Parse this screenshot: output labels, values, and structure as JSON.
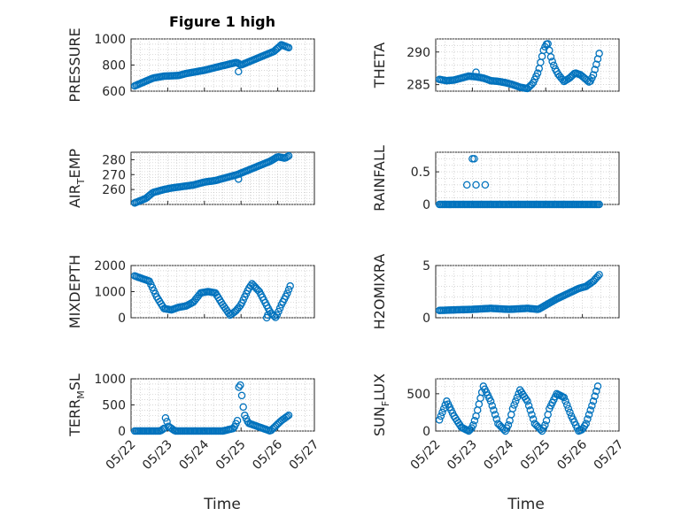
{
  "figure": {
    "title": "Figure 1 high",
    "xlabel": "Time",
    "x_tick_labels": [
      "05/22",
      "05/23",
      "05/24",
      "05/25",
      "05/26",
      "05/27"
    ],
    "marker_color": "#0072BD"
  },
  "chart_data": [
    {
      "type": "scatter",
      "title": "Figure 1 high",
      "ylabel": "PRESSURE",
      "ylim": [
        600,
        1000
      ],
      "yticks": [
        600,
        800,
        1000
      ],
      "xlim": [
        0,
        5
      ],
      "grid": true,
      "series": [
        {
          "x_day_start": 0.1,
          "x_day_end": 4.33,
          "x": [
            0.1,
            0.6,
            0.9,
            1.3,
            1.5,
            2.0,
            2.5,
            2.88,
            3.0,
            3.3,
            3.6,
            3.9,
            4.1,
            4.33
          ],
          "y": [
            640,
            700,
            715,
            720,
            735,
            760,
            795,
            820,
            800,
            835,
            870,
            905,
            955,
            930
          ],
          "outliers": [
            {
              "x": 2.93,
              "y": 750
            }
          ]
        }
      ]
    },
    {
      "type": "scatter",
      "ylabel": "THETA",
      "ylim": [
        284,
        292
      ],
      "yticks": [
        285,
        290
      ],
      "xlim": [
        0,
        5
      ],
      "grid": true,
      "series": [
        {
          "x": [
            0.1,
            0.3,
            0.5,
            0.7,
            0.9,
            1.1,
            1.3,
            1.5,
            1.7,
            1.9,
            2.1,
            2.3,
            2.5,
            2.65,
            2.8,
            2.95,
            3.05,
            3.15,
            3.25,
            3.35,
            3.5,
            3.65,
            3.8,
            3.95,
            4.1,
            4.2,
            4.3,
            4.4,
            4.48
          ],
          "y": [
            285.8,
            285.6,
            285.7,
            286.0,
            286.3,
            286.2,
            286.0,
            285.6,
            285.5,
            285.3,
            285.0,
            284.6,
            284.4,
            285.2,
            287.0,
            290.5,
            291.5,
            289.0,
            287.5,
            286.5,
            285.5,
            286.0,
            286.8,
            286.5,
            285.8,
            285.3,
            286.5,
            288.5,
            290.2
          ],
          "outliers": [
            {
              "x": 1.1,
              "y": 286.9
            }
          ]
        }
      ]
    },
    {
      "type": "scatter",
      "ylabel": "AIR_TEMP",
      "ylim": [
        250,
        285
      ],
      "yticks": [
        260,
        270,
        280
      ],
      "xlim": [
        0,
        5
      ],
      "grid": true,
      "series": [
        {
          "x": [
            0.1,
            0.4,
            0.6,
            0.9,
            1.1,
            1.4,
            1.7,
            2.0,
            2.3,
            2.6,
            2.9,
            3.2,
            3.5,
            3.8,
            4.0,
            4.2,
            4.33
          ],
          "y": [
            251,
            254,
            258,
            260,
            261,
            262,
            263,
            265,
            266,
            268,
            270,
            273,
            276,
            279,
            282,
            281,
            283
          ],
          "outliers": [
            {
              "x": 2.93,
              "y": 267
            }
          ]
        }
      ]
    },
    {
      "type": "scatter",
      "ylabel": "RAINFALL",
      "ylim": [
        0,
        0.8
      ],
      "yticks": [
        0,
        0.5
      ],
      "xlim": [
        0,
        5
      ],
      "grid": true,
      "series": [
        {
          "x_day_start": 0.1,
          "x_day_end": 4.48,
          "baseline": 0,
          "spikes": [
            {
              "x": 0.85,
              "y": 0.3
            },
            {
              "x": 1.0,
              "y": 0.7
            },
            {
              "x": 1.05,
              "y": 0.7
            },
            {
              "x": 1.1,
              "y": 0.3
            },
            {
              "x": 1.35,
              "y": 0.3
            }
          ]
        }
      ]
    },
    {
      "type": "scatter",
      "ylabel": "MIXDEPTH",
      "ylim": [
        0,
        2000
      ],
      "yticks": [
        0,
        1000,
        2000
      ],
      "xlim": [
        0,
        5
      ],
      "grid": true,
      "series": [
        {
          "x": [
            0.1,
            0.3,
            0.5,
            0.7,
            0.9,
            1.1,
            1.3,
            1.5,
            1.7,
            1.9,
            2.1,
            2.3,
            2.5,
            2.7,
            2.85,
            3.0,
            3.1,
            3.2,
            3.3,
            3.5,
            3.65,
            3.8,
            3.95,
            4.1,
            4.25,
            4.35
          ],
          "y": [
            1600,
            1500,
            1400,
            800,
            350,
            300,
            400,
            450,
            600,
            950,
            1000,
            950,
            500,
            100,
            250,
            500,
            800,
            1100,
            1300,
            1000,
            600,
            200,
            0,
            500,
            900,
            1250
          ],
          "outliers": [
            {
              "x": 3.7,
              "y": 0
            },
            {
              "x": 3.73,
              "y": 100
            }
          ]
        }
      ]
    },
    {
      "type": "scatter",
      "ylabel": "H2OMIXRA",
      "ylim": [
        0,
        5
      ],
      "yticks": [
        0,
        5
      ],
      "xlim": [
        0,
        5
      ],
      "grid": true,
      "series": [
        {
          "x": [
            0.1,
            0.5,
            1.0,
            1.5,
            2.0,
            2.5,
            2.8,
            3.0,
            3.3,
            3.6,
            3.9,
            4.1,
            4.3,
            4.48
          ],
          "y": [
            0.7,
            0.75,
            0.8,
            0.9,
            0.8,
            0.9,
            0.8,
            1.2,
            1.8,
            2.3,
            2.8,
            3.0,
            3.5,
            4.2
          ]
        }
      ]
    },
    {
      "type": "scatter",
      "ylabel": "TERR_MSL",
      "ylim": [
        0,
        1000
      ],
      "yticks": [
        0,
        500,
        1000
      ],
      "xlim": [
        0,
        5
      ],
      "grid": true,
      "series": [
        {
          "x": [
            0.1,
            0.4,
            0.8,
            0.9,
            0.95,
            1.0,
            1.2,
            1.5,
            2.0,
            2.5,
            2.8,
            2.9,
            2.95,
            3.0,
            3.05,
            3.1,
            3.2,
            3.4,
            3.6,
            3.8,
            3.95,
            4.1,
            4.3
          ],
          "y": [
            0,
            0,
            0,
            50,
            300,
            100,
            0,
            0,
            0,
            0,
            50,
            200,
            1000,
            800,
            500,
            300,
            150,
            100,
            50,
            0,
            100,
            200,
            300
          ]
        }
      ]
    },
    {
      "type": "scatter",
      "ylabel": "SUN_FLUX",
      "ylim": [
        0,
        700
      ],
      "yticks": [
        0,
        500
      ],
      "xlim": [
        0,
        5
      ],
      "grid": true,
      "series": [
        {
          "x": [
            0.1,
            0.3,
            0.5,
            0.7,
            0.9,
            1.0,
            1.1,
            1.3,
            1.5,
            1.7,
            1.9,
            2.0,
            2.1,
            2.3,
            2.5,
            2.7,
            2.9,
            3.0,
            3.1,
            3.3,
            3.5,
            3.7,
            3.9,
            4.0,
            4.1,
            4.3,
            4.45
          ],
          "y": [
            150,
            400,
            200,
            50,
            0,
            50,
            200,
            600,
            400,
            100,
            0,
            100,
            300,
            550,
            400,
            100,
            0,
            100,
            300,
            500,
            450,
            200,
            0,
            20,
            100,
            400,
            650
          ]
        }
      ]
    }
  ]
}
